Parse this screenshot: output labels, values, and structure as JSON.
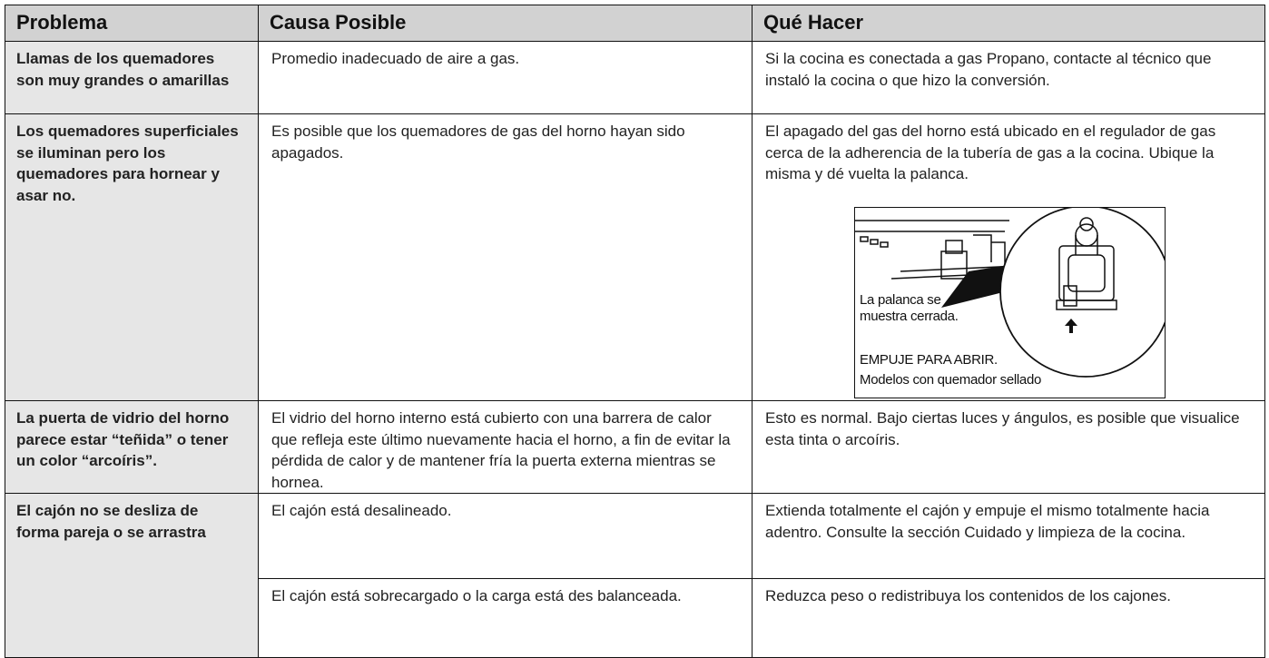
{
  "table": {
    "header": [
      "Problema",
      "Causa Posible",
      "Qué Hacer"
    ],
    "problems": [
      {
        "problem": "Llamas de los quemadores son muy grandes o amarillas",
        "causes": [
          {
            "cause": "Promedio inadecuado de aire a gas.",
            "action": "Si la cocina es conectada a gas Propano, contacte al técnico que instaló la cocina o que hizo la conversión."
          }
        ]
      },
      {
        "problem": "Los quemadores superficiales se iluminan pero los quemadores para hornear y asar no.",
        "causes": [
          {
            "cause": "Es posible que los quemadores de gas del horno hayan sido apagados.",
            "action": "El apagado del gas del horno está ubicado en el regulador de gas cerca de la adherencia de la tubería de gas a la cocina. Ubique la misma y dé vuelta la palanca."
          }
        ]
      },
      {
        "problem": "La puerta de vidrio del horno parece estar “teñida” o tener un color “arcoíris”.",
        "causes": [
          {
            "cause": "El vidrio del horno interno está cubierto con una barrera de calor que refleja este último nuevamente hacia el horno, a fin de evitar la pérdida de calor y de mantener fría la puerta externa mientras se hornea.",
            "action": "Esto es normal. Bajo ciertas luces y ángulos, es posible que visualice esta tinta o arcoíris."
          }
        ]
      },
      {
        "problem": "El cajón no se desliza de forma pareja o se arrastra",
        "causes": [
          {
            "cause": "El cajón está desalineado.",
            "action": "Extienda totalmente el cajón y empuje el mismo totalmente hacia adentro. Consulte la sección Cuidado y limpieza de la cocina."
          },
          {
            "cause": "El cajón está sobrecargado o la carga está des balanceada.",
            "action": "Reduzca peso o redistribuya los contenidos de los cajones."
          }
        ]
      }
    ]
  },
  "figure": {
    "label_closed": "La palanca se muestra cerrada.",
    "label_push": "EMPUJE PARA ABRIR.",
    "label_models": "Modelos con quemador sellado"
  }
}
